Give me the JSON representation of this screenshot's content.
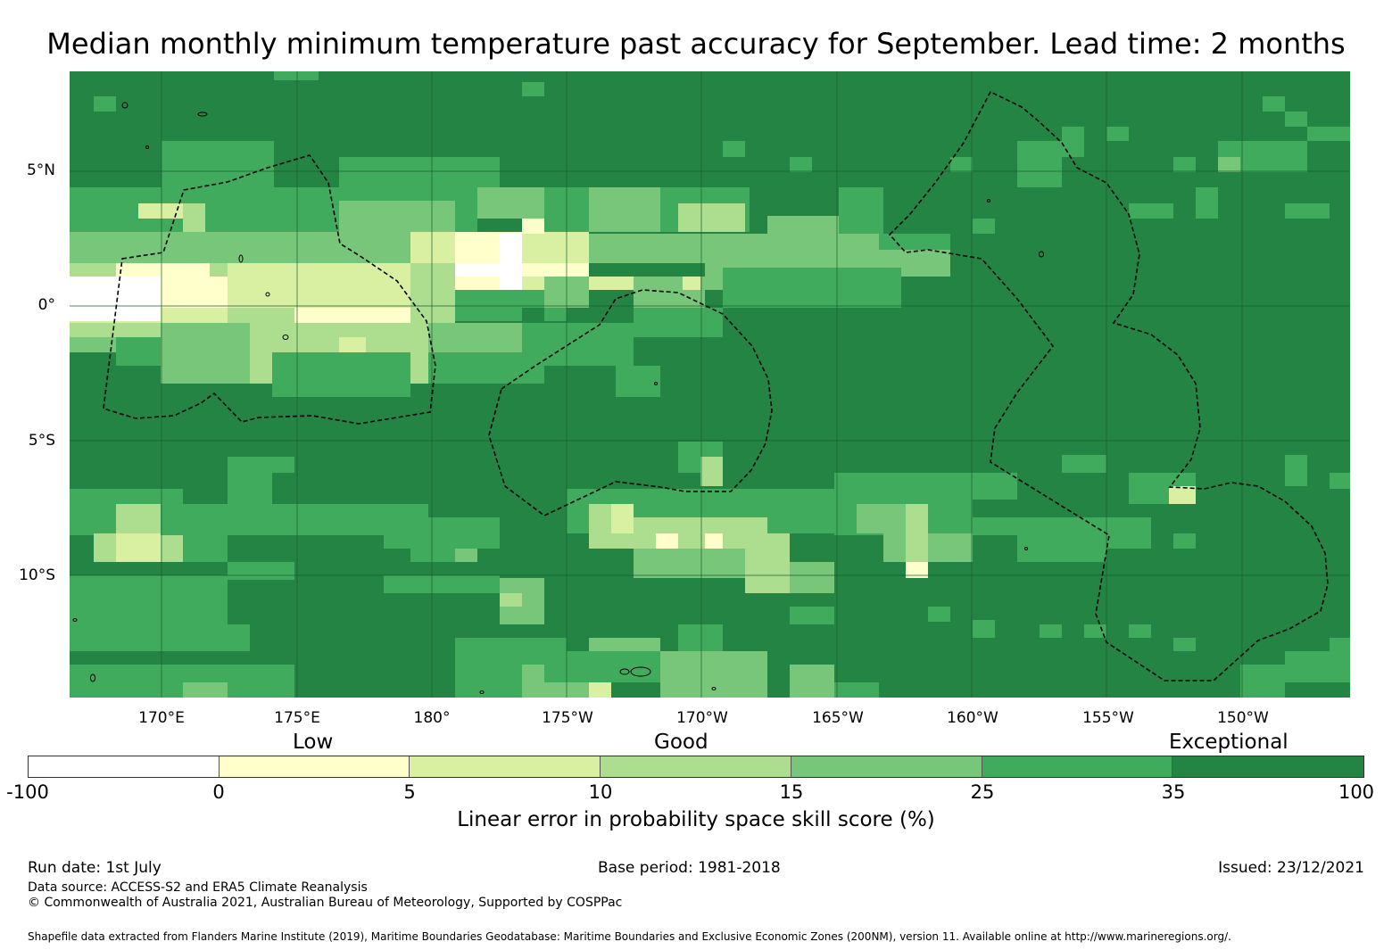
{
  "title": "Median monthly minimum temperature past accuracy for September. Lead time: 2 months",
  "map": {
    "lat_labels": [
      "5°N",
      "0°",
      "5°S",
      "10°S"
    ],
    "lon_labels": [
      "170°E",
      "175°E",
      "180°",
      "175°W",
      "170°W",
      "165°W",
      "160°W",
      "155°W",
      "150°W"
    ],
    "boundary_style": "dashed black",
    "colors": {
      "neg": "#ffffff",
      "c0_5": "#ffffcc",
      "c5_10": "#d9f0a3",
      "c10_15": "#addd8e",
      "c15_25": "#78c679",
      "c25_35": "#41ab5d",
      "c35_100": "#238443"
    }
  },
  "legend": {
    "categories": [
      "Low",
      "Good",
      "Exceptional"
    ],
    "ticks": [
      "-100",
      "0",
      "5",
      "10",
      "15",
      "25",
      "35",
      "100"
    ],
    "colors": [
      "#ffffff",
      "#ffffcc",
      "#d9f0a3",
      "#addd8e",
      "#78c679",
      "#41ab5d",
      "#238443"
    ],
    "label": "Linear error in probability space skill score (%)"
  },
  "footer": {
    "run_date": "Run date: 1st July",
    "base_period": "Base period: 1981-2018",
    "issued": "Issued: 23/12/2021",
    "data_source": "Data source: ACCESS-S2 and ERA5 Climate Reanalysis",
    "copyright": "© Commonwealth of Australia 2021, Australian Bureau of Meteorology, Supported by COSPPac",
    "shapefile": "Shapefile data extracted from Flanders Marine Institute (2019), Maritime Boundaries Geodatabase: Maritime Boundaries and Exclusive Economic Zones (200NM), version 11. Available online at http://www.marineregions.org/."
  }
}
